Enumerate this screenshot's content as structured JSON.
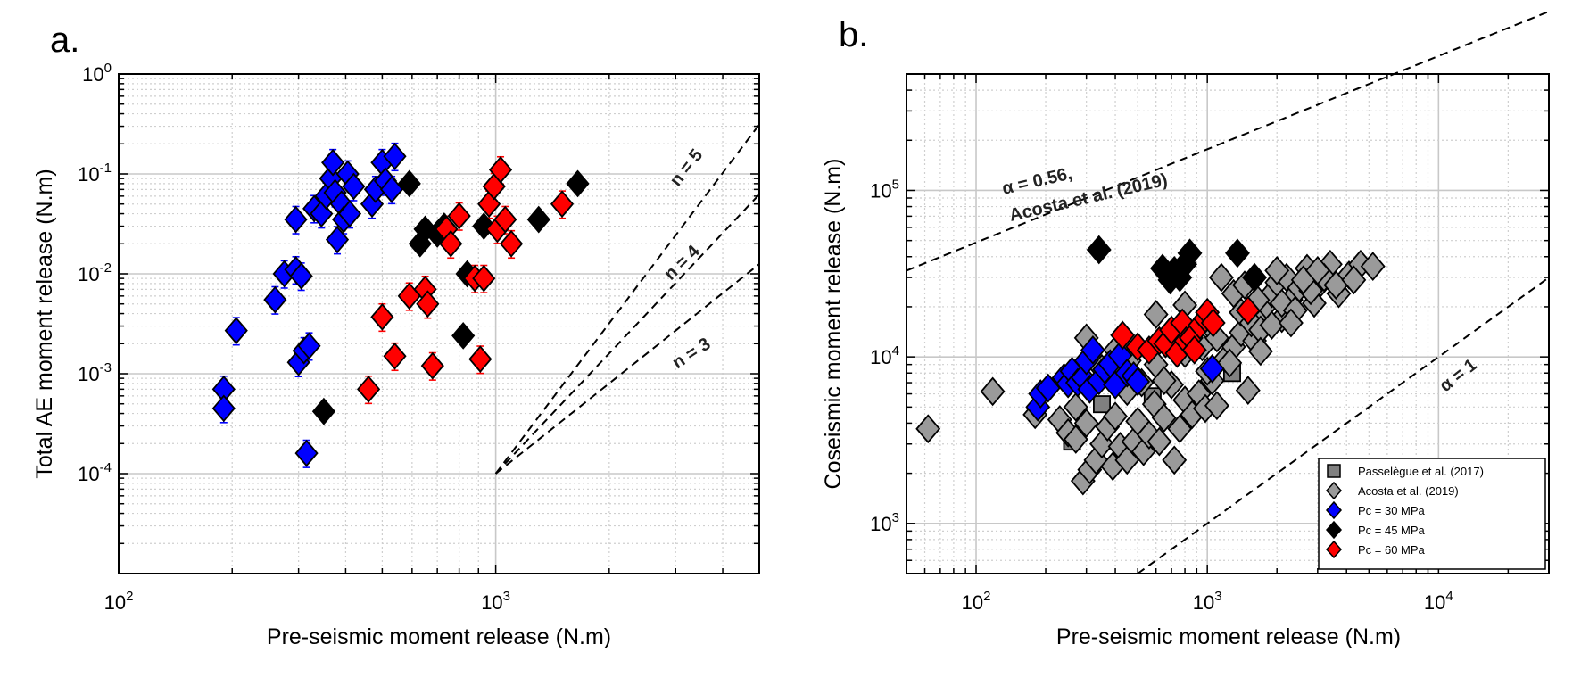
{
  "panel_a": {
    "letter": "a.",
    "xlabel": "Pre-seismic moment release (N.m)",
    "ylabel": "Total AE moment release (N.m)",
    "xticks": [
      {
        "v": 100,
        "b": "10",
        "e": "2"
      },
      {
        "v": 1000,
        "b": "10",
        "e": "3"
      }
    ],
    "yticks": [
      {
        "v": 0.0001,
        "b": "10",
        "e": "-4"
      },
      {
        "v": 0.001,
        "b": "10",
        "e": "-3"
      },
      {
        "v": 0.01,
        "b": "10",
        "e": "-2"
      },
      {
        "v": 0.1,
        "b": "10",
        "e": "-1"
      },
      {
        "v": 1,
        "b": "10",
        "e": "0"
      }
    ],
    "annotations": [
      "n = 5",
      "n = 4",
      "n = 3"
    ]
  },
  "panel_b": {
    "letter": "b.",
    "xlabel": "Pre-seismic moment release (N.m)",
    "ylabel": "Coseismic moment release (N.m)",
    "xticks": [
      {
        "v": 100,
        "b": "10",
        "e": "2"
      },
      {
        "v": 1000,
        "b": "10",
        "e": "3"
      },
      {
        "v": 10000,
        "b": "10",
        "e": "4"
      }
    ],
    "yticks": [
      {
        "v": 1000,
        "b": "10",
        "e": "3"
      },
      {
        "v": 10000,
        "b": "10",
        "e": "4"
      },
      {
        "v": 100000,
        "b": "10",
        "e": "5"
      }
    ],
    "annotations": [
      "α = 0.56,",
      "Acosta et al. (2019)",
      "α = 1"
    ],
    "legend": [
      {
        "label": "Passelègue et al. (2017)",
        "marker": "square",
        "color": "#808080"
      },
      {
        "label": "Acosta et al. (2019)",
        "marker": "diamond",
        "color": "#9a9a9a"
      },
      {
        "label": "Pc = 30 MPa",
        "marker": "diamond",
        "color": "#0000ff"
      },
      {
        "label": "Pc = 45 MPa",
        "marker": "diamond",
        "color": "#000000"
      },
      {
        "label": "Pc = 60 MPa",
        "marker": "diamond",
        "color": "#ff0000"
      }
    ]
  },
  "chart_data": [
    {
      "type": "scatter",
      "title": "",
      "xlabel": "Pre-seismic moment release (N.m)",
      "ylabel": "Total AE moment release (N.m)",
      "xscale": "log",
      "yscale": "log",
      "xlim": [
        100,
        5000
      ],
      "ylim": [
        1e-05,
        1
      ],
      "grid": true,
      "series": [
        {
          "name": "Pc = 30 MPa",
          "color": "#0000ff",
          "points": [
            [
              190,
              0.0007
            ],
            [
              190,
              0.00045
            ],
            [
              205,
              0.0027
            ],
            [
              260,
              0.0055
            ],
            [
              275,
              0.01
            ],
            [
              295,
              0.035
            ],
            [
              295,
              0.011
            ],
            [
              300,
              0.0013
            ],
            [
              305,
              0.0095
            ],
            [
              310,
              0.0017
            ],
            [
              315,
              0.00016
            ],
            [
              320,
              0.0019
            ],
            [
              330,
              0.045
            ],
            [
              345,
              0.04
            ],
            [
              355,
              0.06
            ],
            [
              365,
              0.09
            ],
            [
              370,
              0.13
            ],
            [
              375,
              0.065
            ],
            [
              380,
              0.022
            ],
            [
              390,
              0.05
            ],
            [
              395,
              0.035
            ],
            [
              405,
              0.1
            ],
            [
              410,
              0.04
            ],
            [
              420,
              0.075
            ],
            [
              470,
              0.05
            ],
            [
              480,
              0.07
            ],
            [
              500,
              0.13
            ],
            [
              510,
              0.085
            ],
            [
              530,
              0.07
            ],
            [
              540,
              0.15
            ]
          ],
          "error_bars": true
        },
        {
          "name": "Pc = 45 MPa",
          "color": "#000000",
          "points": [
            [
              350,
              0.00042
            ],
            [
              590,
              0.08
            ],
            [
              630,
              0.02
            ],
            [
              650,
              0.028
            ],
            [
              700,
              0.025
            ],
            [
              730,
              0.03
            ],
            [
              820,
              0.0024
            ],
            [
              840,
              0.01
            ],
            [
              930,
              0.03
            ],
            [
              1300,
              0.035
            ],
            [
              1650,
              0.08
            ]
          ]
        },
        {
          "name": "Pc = 60 MPa",
          "color": "#ff0000",
          "points": [
            [
              460,
              0.0007
            ],
            [
              500,
              0.0037
            ],
            [
              540,
              0.0015
            ],
            [
              590,
              0.006
            ],
            [
              650,
              0.007
            ],
            [
              660,
              0.005
            ],
            [
              680,
              0.0012
            ],
            [
              740,
              0.028
            ],
            [
              760,
              0.02
            ],
            [
              800,
              0.038
            ],
            [
              880,
              0.009
            ],
            [
              910,
              0.0014
            ],
            [
              930,
              0.009
            ],
            [
              960,
              0.05
            ],
            [
              990,
              0.075
            ],
            [
              1010,
              0.028
            ],
            [
              1030,
              0.11
            ],
            [
              1060,
              0.035
            ],
            [
              1100,
              0.02
            ],
            [
              1500,
              0.05
            ]
          ],
          "error_bars": true
        }
      ],
      "reference_lines": [
        {
          "label": "n = 5",
          "exponent": 5,
          "from": [
            1000,
            0.0001
          ]
        },
        {
          "label": "n = 4",
          "exponent": 4,
          "from": [
            1000,
            0.0001
          ]
        },
        {
          "label": "n = 3",
          "exponent": 3,
          "from": [
            1000,
            0.0001
          ]
        }
      ]
    },
    {
      "type": "scatter",
      "title": "",
      "xlabel": "Pre-seismic moment release (N.m)",
      "ylabel": "Coseismic moment release (N.m)",
      "xscale": "log",
      "yscale": "log",
      "xlim": [
        50,
        30000
      ],
      "ylim": [
        500,
        500000
      ],
      "grid": true,
      "legend_position": "bottom-right",
      "series": [
        {
          "name": "Passelègue et al. (2017)",
          "color": "#808080",
          "marker": "square",
          "points": [
            [
              260,
              3100
            ],
            [
              350,
              5200
            ],
            [
              580,
              5800
            ],
            [
              900,
              5200
            ],
            [
              1280,
              8000
            ]
          ]
        },
        {
          "name": "Acosta et al. (2019)",
          "color": "#9a9a9a",
          "marker": "diamond",
          "points": [
            [
              62,
              3700
            ],
            [
              118,
              6200
            ],
            [
              180,
              4500
            ],
            [
              230,
              4200
            ],
            [
              250,
              3500
            ],
            [
              270,
              3200
            ],
            [
              290,
              1800
            ],
            [
              300,
              4000
            ],
            [
              310,
              2100
            ],
            [
              330,
              2400
            ],
            [
              350,
              3000
            ],
            [
              370,
              3800
            ],
            [
              390,
              2200
            ],
            [
              400,
              4400
            ],
            [
              420,
              2900
            ],
            [
              450,
              2400
            ],
            [
              480,
              3100
            ],
            [
              500,
              4100
            ],
            [
              530,
              2700
            ],
            [
              560,
              3400
            ],
            [
              590,
              5200
            ],
            [
              620,
              3100
            ],
            [
              650,
              4300
            ],
            [
              700,
              6800
            ],
            [
              720,
              2400
            ],
            [
              760,
              3700
            ],
            [
              800,
              5500
            ],
            [
              860,
              4500
            ],
            [
              920,
              6000
            ],
            [
              980,
              4900
            ],
            [
              1050,
              7200
            ],
            [
              1100,
              5100
            ],
            [
              1200,
              9800
            ],
            [
              1300,
              11500
            ],
            [
              1400,
              14000
            ],
            [
              1500,
              6300
            ],
            [
              1600,
              12500
            ],
            [
              1700,
              18000
            ],
            [
              1800,
              20500
            ],
            [
              1900,
              24000
            ],
            [
              2000,
              28000
            ],
            [
              2100,
              17000
            ],
            [
              2200,
              30000
            ],
            [
              2300,
              22000
            ],
            [
              2500,
              26000
            ],
            [
              2700,
              34000
            ],
            [
              2900,
              21000
            ],
            [
              3100,
              28000
            ],
            [
              3400,
              36000
            ],
            [
              3700,
              24000
            ],
            [
              4100,
              31000
            ],
            [
              4600,
              36000
            ],
            [
              5200,
              35000
            ],
            [
              300,
              13000
            ],
            [
              350,
              8500
            ],
            [
              400,
              11000
            ],
            [
              460,
              9500
            ],
            [
              520,
              7000
            ],
            [
              600,
              9000
            ],
            [
              700,
              12000
            ],
            [
              800,
              10500
            ],
            [
              950,
              11500
            ],
            [
              1100,
              13000
            ],
            [
              1250,
              9200
            ],
            [
              1400,
              18500
            ],
            [
              1550,
              16000
            ],
            [
              1700,
              14500
            ],
            [
              1900,
              15500
            ],
            [
              2100,
              21000
            ],
            [
              2400,
              19000
            ],
            [
              2800,
              25000
            ],
            [
              3200,
              30000
            ],
            [
              600,
              18000
            ],
            [
              800,
              20500
            ],
            [
              1000,
              16000
            ],
            [
              1150,
              30000
            ],
            [
              1300,
              24000
            ],
            [
              1450,
              27000
            ],
            [
              1650,
              22000
            ],
            [
              2000,
              33000
            ],
            [
              2600,
              29000
            ],
            [
              3000,
              33000
            ],
            [
              270,
              5000
            ],
            [
              450,
              6200
            ],
            [
              650,
              7200
            ],
            [
              1000,
              8200
            ],
            [
              1700,
              10800
            ],
            [
              2300,
              16000
            ],
            [
              3600,
              27000
            ],
            [
              4300,
              29000
            ]
          ]
        },
        {
          "name": "Pc = 30 MPa",
          "color": "#0000ff",
          "marker": "diamond",
          "points": [
            [
              185,
              5000
            ],
            [
              190,
              6000
            ],
            [
              205,
              6500
            ],
            [
              240,
              7500
            ],
            [
              250,
              6900
            ],
            [
              260,
              8200
            ],
            [
              275,
              7000
            ],
            [
              290,
              7500
            ],
            [
              300,
              9500
            ],
            [
              310,
              6400
            ],
            [
              320,
              11000
            ],
            [
              340,
              7200
            ],
            [
              360,
              8400
            ],
            [
              380,
              9100
            ],
            [
              400,
              6800
            ],
            [
              420,
              10200
            ],
            [
              450,
              8000
            ],
            [
              480,
              7700
            ],
            [
              500,
              7100
            ],
            [
              1050,
              8500
            ]
          ]
        },
        {
          "name": "Pc = 45 MPa",
          "color": "#000000",
          "marker": "diamond",
          "points": [
            [
              340,
              44000
            ],
            [
              640,
              34000
            ],
            [
              690,
              29000
            ],
            [
              720,
              33000
            ],
            [
              760,
              30000
            ],
            [
              800,
              36000
            ],
            [
              840,
              42000
            ],
            [
              1350,
              42000
            ],
            [
              1600,
              30000
            ]
          ]
        },
        {
          "name": "Pc = 60 MPa",
          "color": "#ff0000",
          "marker": "diamond",
          "points": [
            [
              430,
              13500
            ],
            [
              500,
              11500
            ],
            [
              560,
              11000
            ],
            [
              620,
              12500
            ],
            [
              660,
              12000
            ],
            [
              700,
              14500
            ],
            [
              740,
              10500
            ],
            [
              780,
              16000
            ],
            [
              810,
              12500
            ],
            [
              850,
              13000
            ],
            [
              880,
              11000
            ],
            [
              930,
              15500
            ],
            [
              980,
              17000
            ],
            [
              1000,
              18500
            ],
            [
              1060,
              16000
            ],
            [
              1500,
              19000
            ]
          ]
        }
      ],
      "reference_lines": [
        {
          "label": "α = 0.56, Acosta et al. (2019)",
          "exponent": 0.56
        },
        {
          "label": "α = 1",
          "exponent": 1
        }
      ]
    }
  ]
}
